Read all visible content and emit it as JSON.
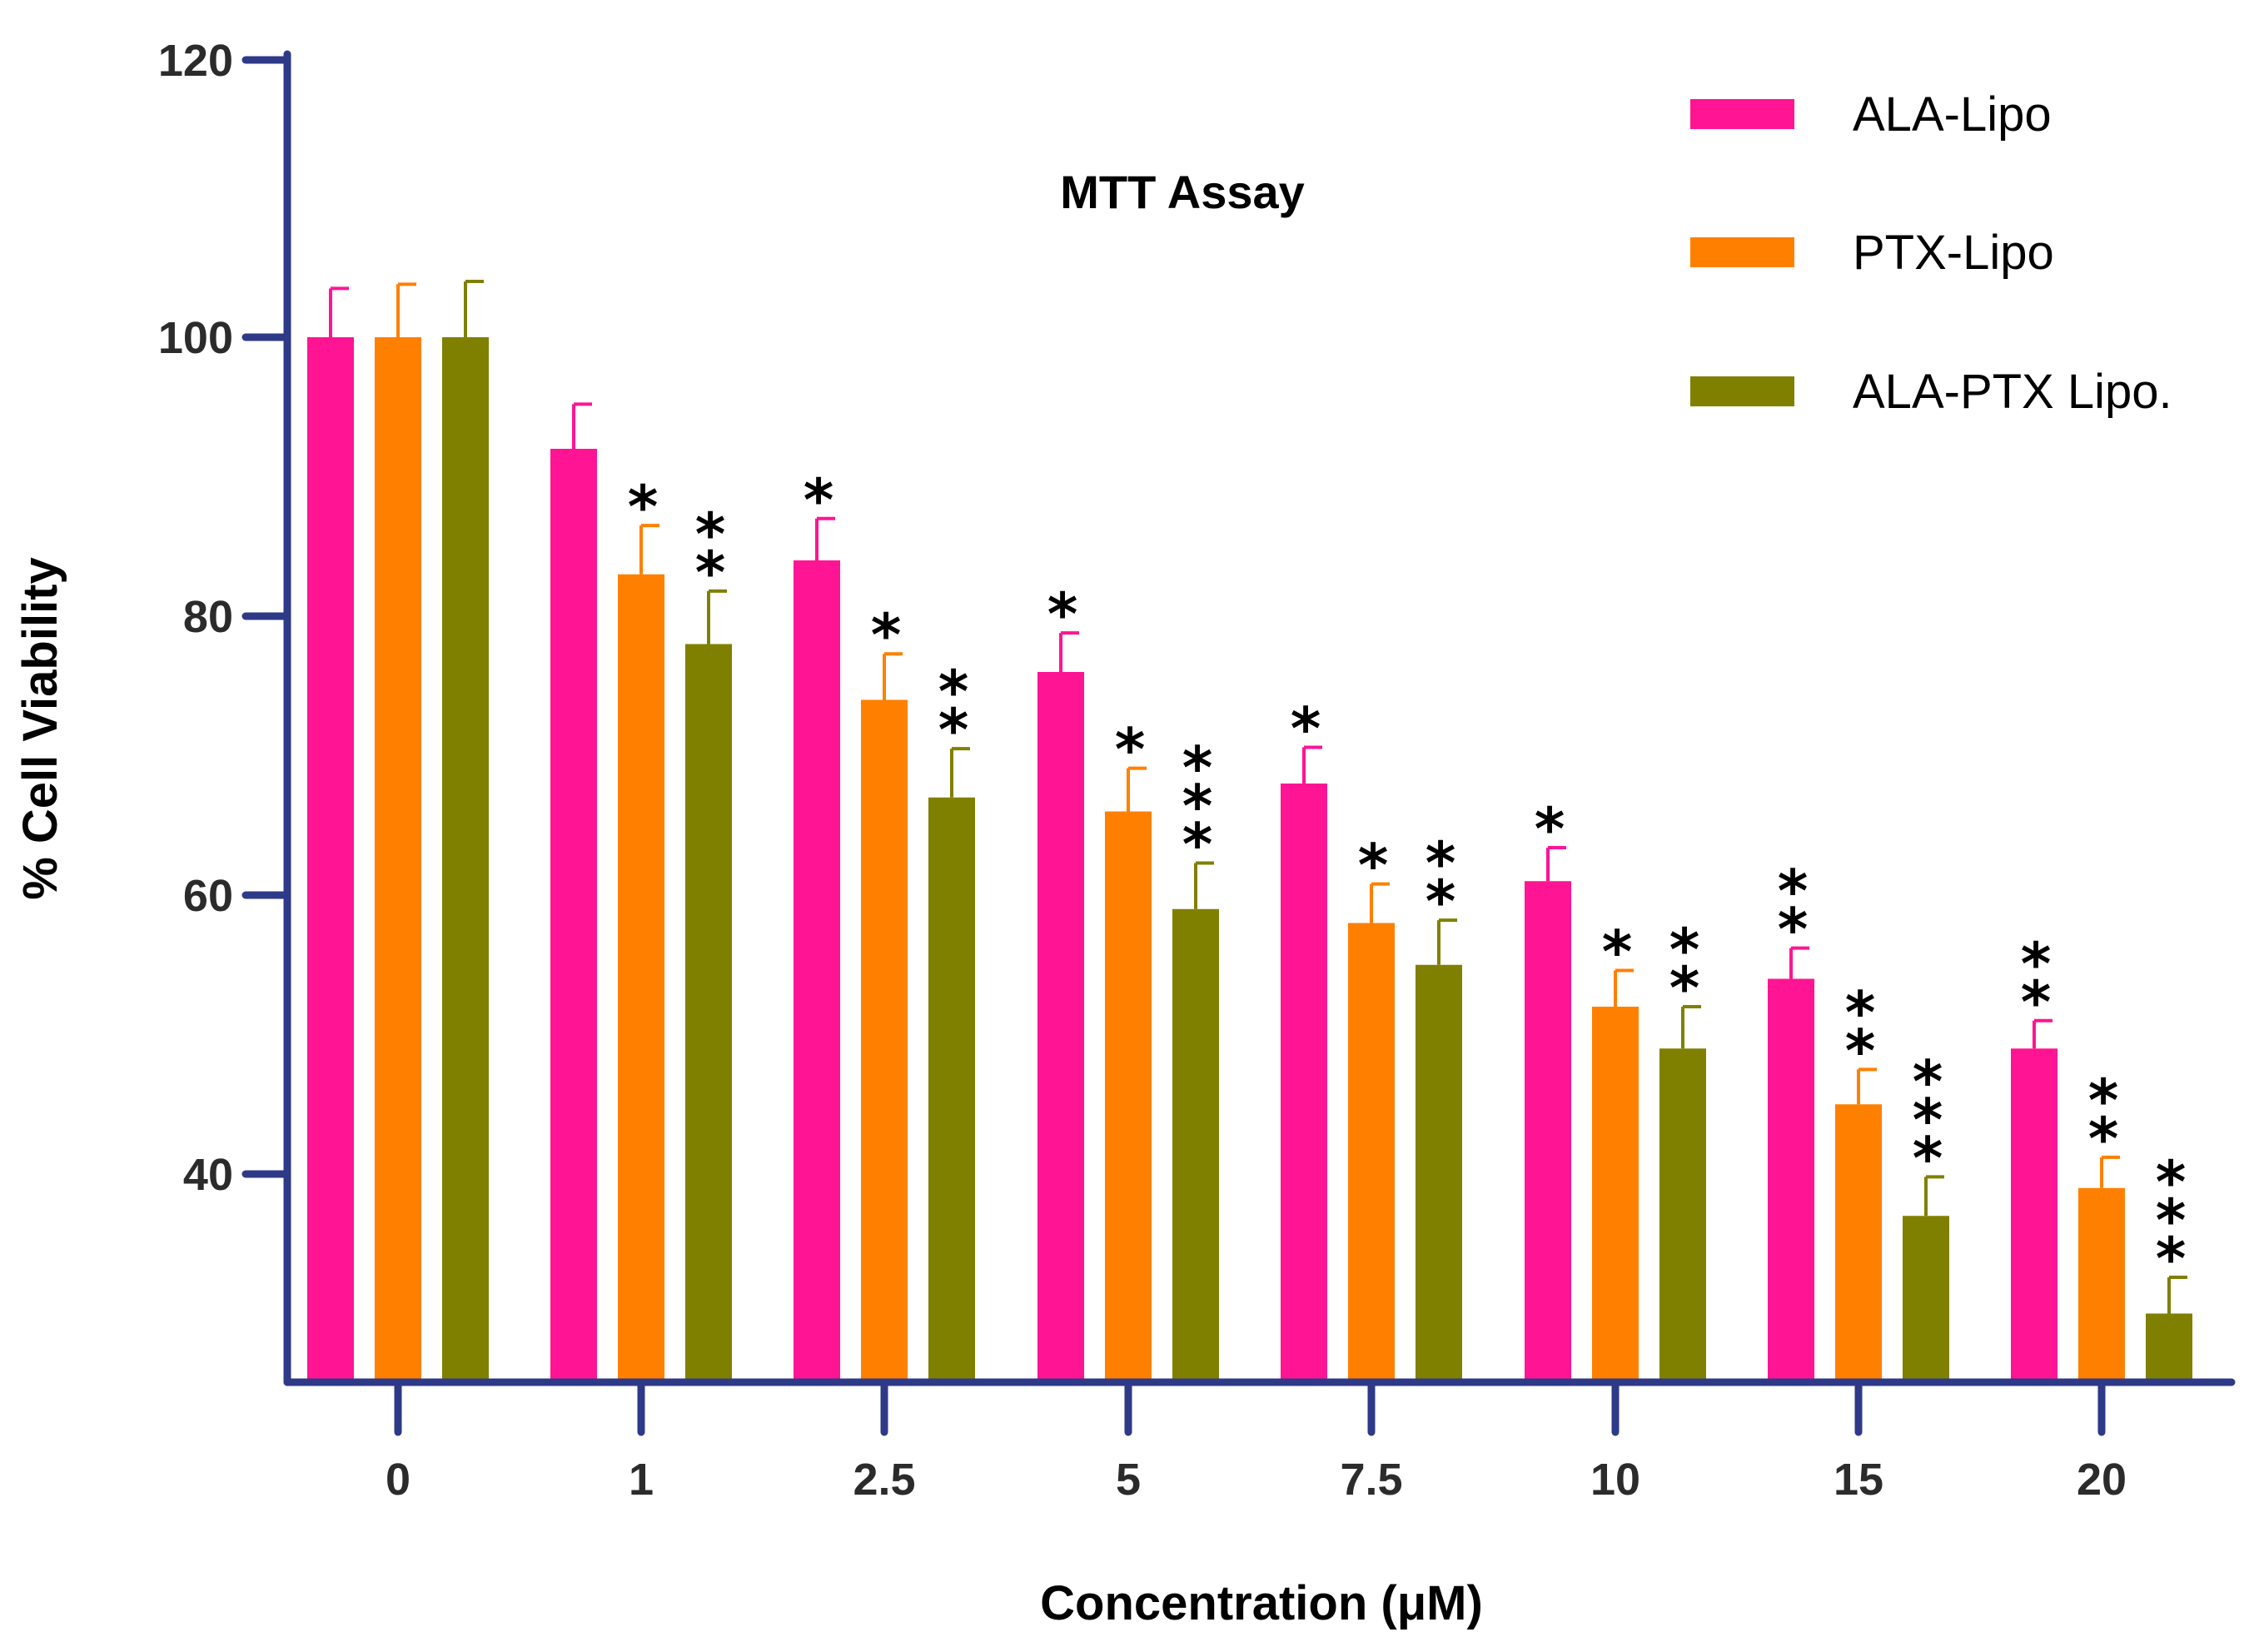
{
  "chart_data": {
    "type": "bar",
    "title": "MTT Assay",
    "xlabel": "Concentration (μM)",
    "ylabel": "% Cell Viability",
    "categories": [
      "0",
      "1",
      "2.5",
      "5",
      "7.5",
      "10",
      "15",
      "20"
    ],
    "ylim": [
      25,
      120
    ],
    "yticks": [
      40,
      60,
      80,
      100,
      120
    ],
    "series": [
      {
        "name": "ALA-Lipo",
        "color": "#FF1493",
        "values": [
          100,
          92,
          84,
          76,
          68,
          61,
          54,
          49
        ],
        "errors": [
          3.5,
          3.2,
          3.0,
          2.8,
          2.6,
          2.4,
          2.2,
          2.0
        ],
        "significance": [
          "",
          "",
          "*",
          "*",
          "*",
          "*",
          "**",
          "**"
        ]
      },
      {
        "name": "PTX-Lipo",
        "color": "#FF8000",
        "values": [
          100,
          83,
          74,
          66,
          58,
          52,
          45,
          39
        ],
        "errors": [
          3.8,
          3.5,
          3.3,
          3.1,
          2.8,
          2.6,
          2.5,
          2.2
        ],
        "significance": [
          "",
          "*",
          "*",
          "*",
          "*",
          "*",
          "**",
          "**"
        ]
      },
      {
        "name": "ALA-PTX Lipo.",
        "color": "#808000",
        "values": [
          100,
          78,
          67,
          59,
          55,
          49,
          37,
          30
        ],
        "errors": [
          4.0,
          3.8,
          3.5,
          3.3,
          3.2,
          3.0,
          2.8,
          2.6
        ],
        "significance": [
          "",
          "**",
          "**",
          "***",
          "**",
          "**",
          "***",
          "***"
        ]
      }
    ],
    "legend_position": "top-right",
    "axis_color": "#2E3A87"
  }
}
